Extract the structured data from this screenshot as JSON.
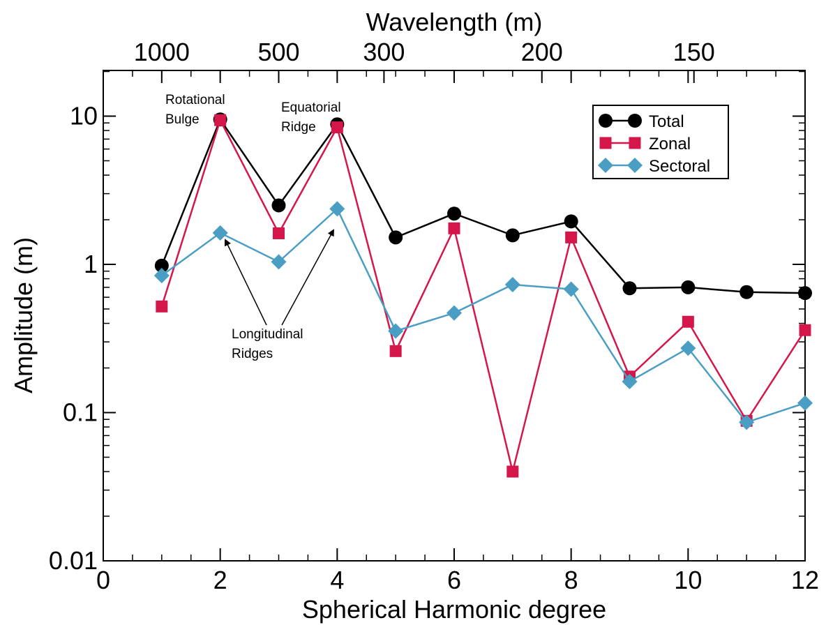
{
  "chart_data": {
    "type": "line",
    "title": "",
    "xlabel": "Spherical Harmonic degree",
    "ylabel": "Amplitude (m)",
    "x2label": "Wavelength (m)",
    "y_scale": "log",
    "xlim": [
      0,
      12
    ],
    "ylim": [
      0.01,
      20
    ],
    "x_ticks": [
      0,
      2,
      4,
      6,
      8,
      10,
      12
    ],
    "x_tick_labels": [
      "0",
      "2",
      "4",
      "6",
      "8",
      "10",
      "12"
    ],
    "y_ticks": [
      0.01,
      0.1,
      1,
      10
    ],
    "y_tick_labels": [
      "0.01",
      "0.1",
      "1",
      "10"
    ],
    "x2_ticks": [
      {
        "label": "1000",
        "degree": 1.0
      },
      {
        "label": "500",
        "degree": 3.0
      },
      {
        "label": "300",
        "degree": 4.8
      },
      {
        "label": "200",
        "degree": 7.5
      },
      {
        "label": "150",
        "degree": 10.1
      }
    ],
    "grid": false,
    "legend_position": "top-right",
    "x": [
      1,
      2,
      3,
      4,
      5,
      6,
      7,
      8,
      9,
      10,
      11,
      12
    ],
    "series": [
      {
        "name": "Total",
        "color": "#000000",
        "marker": "circle",
        "values": [
          0.98,
          9.5,
          2.5,
          8.8,
          1.52,
          2.2,
          1.57,
          1.95,
          0.69,
          0.7,
          0.65,
          0.64
        ]
      },
      {
        "name": "Zonal",
        "color": "#d4164a",
        "marker": "square",
        "values": [
          0.52,
          9.4,
          1.62,
          8.4,
          0.26,
          1.75,
          0.04,
          1.52,
          0.175,
          0.41,
          0.088,
          0.36
        ]
      },
      {
        "name": "Sectoral",
        "color": "#4a9ec4",
        "marker": "diamond",
        "values": [
          0.84,
          1.63,
          1.04,
          2.37,
          0.355,
          0.47,
          0.73,
          0.68,
          0.162,
          0.272,
          0.086,
          0.116
        ]
      }
    ],
    "annotations": [
      {
        "lines": [
          "Rotational",
          "Bulge"
        ]
      },
      {
        "lines": [
          "Equatorial",
          "Ridge"
        ]
      },
      {
        "lines": [
          "Longitudinal",
          "Ridges"
        ]
      }
    ]
  }
}
